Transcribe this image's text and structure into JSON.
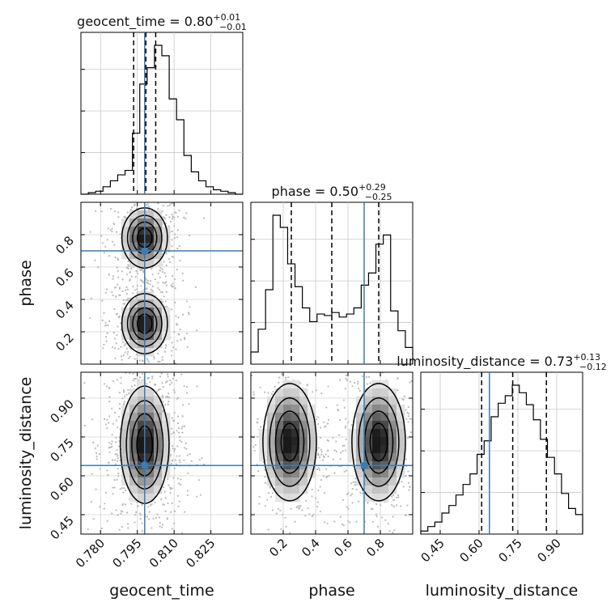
{
  "chart_data": {
    "type": "corner",
    "truth_color": "#3b7cb3",
    "parameters": [
      {
        "name": "geocent_time",
        "range": [
          0.772,
          0.838
        ],
        "ticks": [
          0.78,
          0.795,
          0.81,
          0.825
        ],
        "tick_labels": [
          "0.780",
          "0.795",
          "0.810",
          "0.825"
        ],
        "title": {
          "main": "geocent_time = 0.80",
          "sup": "+0.01",
          "sub": "−0.01"
        },
        "quantiles": [
          0.7935,
          0.7985,
          0.8025
        ],
        "truth": 0.798,
        "hist": [
          0,
          1,
          2,
          5,
          9,
          13,
          16,
          41,
          74,
          85,
          100,
          93,
          64,
          50,
          26,
          15,
          9,
          5,
          3,
          2,
          1,
          0
        ]
      },
      {
        "name": "phase",
        "range": [
          0.0,
          1.0
        ],
        "ticks": [
          0.2,
          0.4,
          0.6,
          0.8
        ],
        "tick_labels": [
          "0.2",
          "0.4",
          "0.6",
          "0.8"
        ],
        "title": {
          "main": "phase = 0.50",
          "sup": "+0.29",
          "sub": "−0.25"
        },
        "quantiles": [
          0.25,
          0.5,
          0.79
        ],
        "truth": 0.7,
        "hist": [
          8,
          23,
          49,
          98,
          90,
          66,
          51,
          37,
          28,
          33,
          32,
          34,
          31,
          33,
          37,
          52,
          60,
          79,
          85,
          35,
          22,
          11
        ]
      },
      {
        "name": "luminosity_distance",
        "range": [
          0.375,
          1.0
        ],
        "ticks": [
          0.45,
          0.6,
          0.75,
          0.9
        ],
        "tick_labels": [
          "0.45",
          "0.60",
          "0.75",
          "0.90"
        ],
        "title": {
          "main": "luminosity_distance = 0.73",
          "sup": "+0.13",
          "sub": "−0.12"
        },
        "quantiles": [
          0.61,
          0.73,
          0.86
        ],
        "truth": 0.64,
        "hist": [
          2,
          5,
          8,
          14,
          19,
          26,
          33,
          40,
          53,
          62,
          78,
          87,
          92,
          99,
          94,
          86,
          76,
          63,
          51,
          40,
          27,
          17,
          13
        ]
      }
    ],
    "pairs": [
      {
        "x": "geocent_time",
        "y": "phase",
        "modes": [
          {
            "x": 0.798,
            "y": 0.78,
            "sx": 0.0045,
            "sy": 0.09
          },
          {
            "x": 0.798,
            "y": 0.25,
            "sx": 0.0045,
            "sy": 0.09
          }
        ],
        "contour_levels": [
          0.12,
          0.3,
          0.55,
          0.8
        ]
      },
      {
        "x": "geocent_time",
        "y": "luminosity_distance",
        "modes": [
          {
            "x": 0.798,
            "y": 0.72,
            "sx": 0.0048,
            "sy": 0.11
          }
        ],
        "contour_levels": [
          0.12,
          0.3,
          0.55,
          0.8
        ]
      },
      {
        "x": "phase",
        "y": "luminosity_distance",
        "modes": [
          {
            "x": 0.24,
            "y": 0.73,
            "sx": 0.08,
            "sy": 0.11
          },
          {
            "x": 0.79,
            "y": 0.73,
            "sx": 0.08,
            "sy": 0.11
          }
        ],
        "contour_levels": [
          0.12,
          0.3,
          0.55,
          0.8
        ]
      }
    ]
  }
}
